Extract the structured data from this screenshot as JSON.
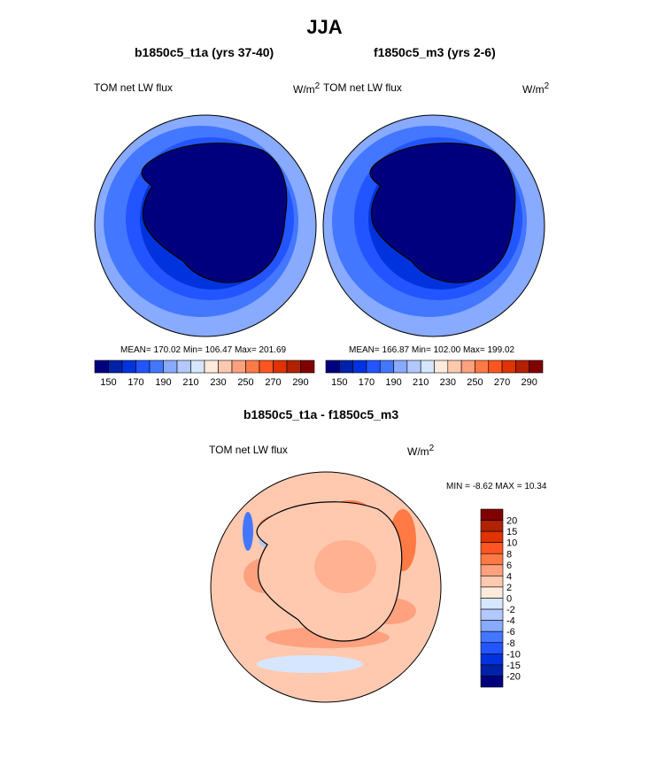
{
  "title": "JJA",
  "panels": [
    {
      "title": "b1850c5_t1a (yrs 37-40)",
      "left_label": "TOM net LW flux",
      "units": "W/m",
      "units_sup": "2",
      "stats": "MEAN= 170.02  Min= 106.47  Max= 201.69"
    },
    {
      "title": "f1850c5_m3 (yrs 2-6)",
      "left_label": "TOM net LW flux",
      "units": "W/m",
      "units_sup": "2",
      "stats": "MEAN= 166.87  Min= 102.00  Max= 199.02"
    }
  ],
  "diff": {
    "title": "b1850c5_t1a - f1850c5_m3",
    "left_label": "TOM net LW flux",
    "units": "W/m",
    "units_sup": "2",
    "stats": "MIN =  -8.62 MAX =  10.34"
  },
  "colors": [
    "#00007f",
    "#0022a8",
    "#0033dd",
    "#2255ff",
    "#4477ff",
    "#88aaff",
    "#b3c8ff",
    "#d6e6ff",
    "#ffeadb",
    "#ffc9b0",
    "#ffa17f",
    "#ff7a45",
    "#ff5522",
    "#e03300",
    "#b02200",
    "#800000"
  ],
  "chart_data": {
    "type": "map",
    "top_colorbar_labels": [
      "150",
      "170",
      "190",
      "210",
      "230",
      "250",
      "270",
      "290"
    ],
    "top_colorbar_levels": [
      150,
      160,
      170,
      180,
      190,
      200,
      210,
      220,
      230,
      240,
      250,
      260,
      270,
      280,
      290
    ],
    "diff_colorbar_labels": [
      "20",
      "15",
      "10",
      "8",
      "6",
      "4",
      "2",
      "0",
      "-2",
      "-4",
      "-6",
      "-8",
      "-10",
      "-15",
      "-20"
    ]
  }
}
